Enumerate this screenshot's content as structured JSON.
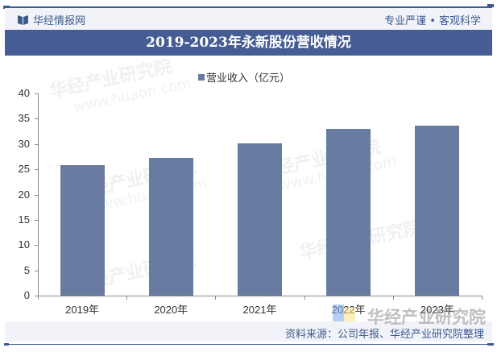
{
  "header": {
    "brand": "华经情报网",
    "slogan": "专业严谨 • 客观科学"
  },
  "title": "2019-2023年永新股份营收情况",
  "legend": {
    "label": "营业收入（亿元）",
    "color": "#687ba0"
  },
  "yaxis": {
    "ticks": [
      "0",
      "5",
      "10",
      "15",
      "20",
      "25",
      "30",
      "35",
      "40"
    ]
  },
  "xaxis": {
    "labels": [
      "2019年",
      "2020年",
      "2021年",
      "2022年",
      "2023年"
    ]
  },
  "watermark": {
    "logo_text": "华经产业研究院",
    "url": "www.huaon.com"
  },
  "footer": {
    "source": "资料来源：公司年报、华经产业研究院整理"
  },
  "colors": {
    "accent": "#455d94",
    "bar": "#687ba0",
    "header_bg": "#f1f3f8"
  },
  "chart_data": {
    "type": "bar",
    "title": "2019-2023年永新股份营收情况",
    "categories": [
      "2019年",
      "2020年",
      "2021年",
      "2022年",
      "2023年"
    ],
    "series": [
      {
        "name": "营业收入（亿元）",
        "values": [
          25.8,
          27.3,
          30.1,
          33.0,
          33.6
        ]
      }
    ],
    "xlabel": "",
    "ylabel": "",
    "ylim": [
      0,
      40
    ],
    "yticks": [
      0,
      5,
      10,
      15,
      20,
      25,
      30,
      35,
      40
    ],
    "grid": false,
    "legend_position": "top"
  }
}
